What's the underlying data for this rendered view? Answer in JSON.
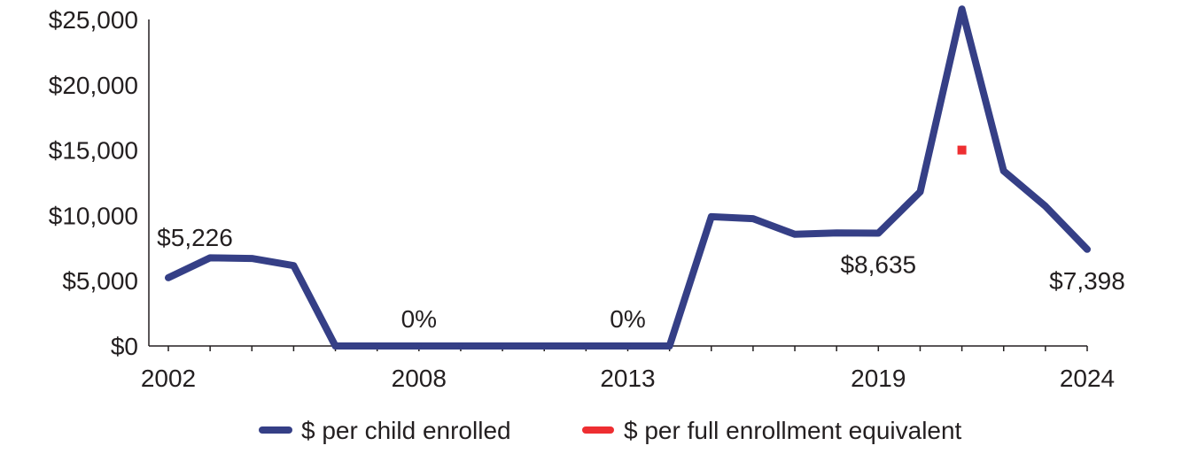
{
  "chart_data": {
    "type": "line",
    "x": [
      2002,
      2003,
      2004,
      2005,
      2006,
      2007,
      2008,
      2009,
      2010,
      2011,
      2012,
      2013,
      2014,
      2015,
      2016,
      2017,
      2018,
      2019,
      2020,
      2021,
      2022,
      2023,
      2024
    ],
    "x_tick_labels": [
      "2002",
      "2008",
      "2013",
      "2019",
      "2024"
    ],
    "y_tick_labels": [
      "$0",
      "$5,000",
      "$10,000",
      "$15,000",
      "$20,000",
      "$25,000"
    ],
    "ylim": [
      0,
      25000
    ],
    "series": [
      {
        "name": "$ per child enrolled",
        "color": "#353f86",
        "values": [
          5226,
          6750,
          6700,
          6150,
          0,
          0,
          0,
          0,
          0,
          0,
          0,
          0,
          0,
          9900,
          9750,
          8550,
          8650,
          8635,
          11800,
          25800,
          13400,
          10700,
          7398
        ]
      },
      {
        "name": "$ per full enrollment equivalent",
        "color": "#ee2e31",
        "points": [
          {
            "x": 2021,
            "y": 15000
          }
        ]
      }
    ],
    "data_labels": [
      {
        "x": 2002,
        "text": "$5,226",
        "position": "above"
      },
      {
        "x": 2008,
        "text": "0%",
        "position": "above"
      },
      {
        "x": 2013,
        "text": "0%",
        "position": "above"
      },
      {
        "x": 2019,
        "text": "$8,635",
        "position": "below"
      },
      {
        "x": 2024,
        "text": "$7,398",
        "position": "below"
      }
    ],
    "legend_position": "bottom-center",
    "grid": false
  }
}
